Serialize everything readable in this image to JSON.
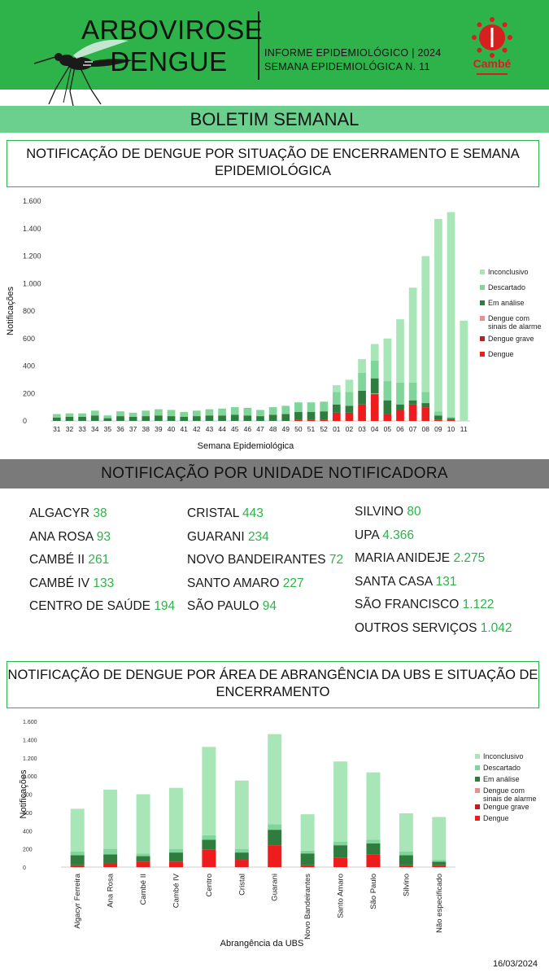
{
  "header": {
    "title_line1": "ARBOVIROSE",
    "title_line2": "DENGUE",
    "info_line1": "INFORME EPIDEMIOLÓGICO | 2024",
    "info_line2": "SEMANA EPIDEMIOLÓGICA  N. 11",
    "logo_text": "Cambé"
  },
  "banner": "BOLETIM SEMANAL",
  "units_section_title": "NOTIFICAÇÃO POR UNIDADE NOTIFICADORA",
  "units": {
    "col1": [
      {
        "name": "ALGACYR",
        "value": "38"
      },
      {
        "name": "ANA ROSA",
        "value": "93"
      },
      {
        "name": "CAMBÉ II",
        "value": "261"
      },
      {
        "name": "CAMBÉ IV",
        "value": "133"
      },
      {
        "name": "CENTRO DE SAÚDE",
        "value": "194"
      }
    ],
    "col2": [
      {
        "name": "CRISTAL",
        "value": "443"
      },
      {
        "name": "GUARANI",
        "value": "234"
      },
      {
        "name": "NOVO BANDEIRANTES",
        "value": "72"
      },
      {
        "name": "SANTO AMARO",
        "value": "227"
      },
      {
        "name": "SÃO PAULO",
        "value": "94"
      }
    ],
    "col3": [
      {
        "name": "SILVINO",
        "value": "80"
      },
      {
        "name": "UPA",
        "value": "4.366"
      },
      {
        "name": "MARIA ANIDEJE",
        "value": "2.275"
      },
      {
        "name": "SANTA CASA",
        "value": "131"
      },
      {
        "name": "SÃO FRANCISCO",
        "value": "1.122"
      },
      {
        "name": "OUTROS SERVIÇOS",
        "value": "1.042"
      }
    ]
  },
  "date": "16/03/2024",
  "colors": {
    "header_green": "#2db34a",
    "banner_green": "#6bd08e",
    "grey_band": "#7a7a7a",
    "inconclusivo": "#a8e6b8",
    "descartado": "#7fd59a",
    "em_analise": "#2e7d3e",
    "alarme": "#ee8f8f",
    "grave": "#b62222",
    "dengue": "#ee1c1c"
  },
  "chart_data": [
    {
      "type": "bar",
      "stacked": true,
      "title": "NOTIFICAÇÃO DE DENGUE POR SITUAÇÃO DE ENCERRAMENTO E SEMANA EPIDEMIOLÓGICA",
      "xlabel": "Semana Epidemiológica",
      "ylabel": "Notificações",
      "ylim": [
        0,
        1600
      ],
      "yticks": [
        0,
        200,
        400,
        600,
        800,
        1000,
        1200,
        1400,
        1600
      ],
      "ytick_labels": [
        "0",
        "200",
        "400",
        "600",
        "800",
        "1.000",
        "1.200",
        "1.400",
        "1.600"
      ],
      "legend_position": "right",
      "categories": [
        "31",
        "32",
        "33",
        "34",
        "35",
        "36",
        "37",
        "38",
        "39",
        "40",
        "41",
        "42",
        "43",
        "44",
        "45",
        "46",
        "47",
        "48",
        "49",
        "50",
        "51",
        "52",
        "01",
        "02",
        "03",
        "04",
        "05",
        "06",
        "07",
        "08",
        "09",
        "10",
        "11"
      ],
      "series": [
        {
          "name": "Dengue",
          "color": "#ee1c1c",
          "values": [
            0,
            0,
            0,
            0,
            0,
            0,
            0,
            0,
            0,
            0,
            0,
            0,
            0,
            0,
            0,
            0,
            0,
            0,
            0,
            10,
            10,
            10,
            60,
            60,
            120,
            190,
            50,
            80,
            120,
            100,
            10,
            10,
            0
          ]
        },
        {
          "name": "Dengue grave",
          "color": "#b62222",
          "values": [
            0,
            0,
            0,
            0,
            0,
            0,
            0,
            0,
            0,
            0,
            0,
            0,
            0,
            0,
            0,
            0,
            0,
            0,
            0,
            0,
            0,
            0,
            0,
            0,
            0,
            5,
            0,
            0,
            0,
            0,
            0,
            0,
            0
          ]
        },
        {
          "name": "Dengue com sinais de alarme",
          "color": "#ee8f8f",
          "values": [
            0,
            0,
            0,
            0,
            0,
            0,
            0,
            0,
            0,
            0,
            0,
            0,
            0,
            0,
            0,
            0,
            0,
            0,
            0,
            0,
            0,
            0,
            0,
            0,
            0,
            5,
            0,
            0,
            0,
            0,
            0,
            0,
            0
          ]
        },
        {
          "name": "Em análise",
          "color": "#2e7d3e",
          "values": [
            25,
            30,
            30,
            40,
            20,
            35,
            30,
            35,
            40,
            35,
            30,
            35,
            40,
            40,
            45,
            40,
            35,
            45,
            50,
            55,
            55,
            60,
            60,
            50,
            100,
            110,
            100,
            40,
            30,
            30,
            30,
            10,
            0
          ]
        },
        {
          "name": "Descartado",
          "color": "#7fd59a",
          "values": [
            25,
            25,
            25,
            35,
            20,
            35,
            30,
            40,
            45,
            45,
            35,
            40,
            45,
            50,
            55,
            55,
            45,
            55,
            60,
            70,
            70,
            70,
            90,
            100,
            130,
            130,
            140,
            160,
            130,
            80,
            30,
            10,
            0
          ]
        },
        {
          "name": "Inconclusivo",
          "color": "#a8e6b8",
          "values": [
            0,
            0,
            0,
            0,
            0,
            0,
            0,
            0,
            0,
            0,
            0,
            0,
            0,
            0,
            0,
            0,
            0,
            0,
            0,
            0,
            0,
            0,
            50,
            90,
            100,
            120,
            310,
            460,
            690,
            990,
            1400,
            1490,
            730
          ]
        }
      ]
    },
    {
      "type": "bar",
      "stacked": true,
      "title": "NOTIFICAÇÃO DE DENGUE POR ÁREA DE ABRANGÊNCIA DA UBS E SITUAÇÃO DE ENCERRAMENTO",
      "xlabel": "Abrangência da UBS",
      "ylabel": "Notificações",
      "ylim": [
        0,
        1600
      ],
      "yticks": [
        0,
        200,
        400,
        600,
        800,
        1000,
        1200,
        1400,
        1600
      ],
      "ytick_labels": [
        "0",
        "200",
        "400",
        "600",
        "800",
        "1.000",
        "1.200",
        "1.400",
        "1.600"
      ],
      "legend_position": "right",
      "categories": [
        "Algacyr Ferreira",
        "Ana Rosa",
        "Cambé II",
        "Cambé IV",
        "Centro",
        "Cristal",
        "Guarani",
        "Novo Bandeirantes",
        "Santo Amaro",
        "São Paulo",
        "Silvino",
        "Não especificado"
      ],
      "series": [
        {
          "name": "Dengue",
          "color": "#ee1c1c",
          "values": [
            20,
            40,
            60,
            60,
            190,
            80,
            240,
            20,
            100,
            140,
            20,
            20
          ]
        },
        {
          "name": "Dengue grave",
          "color": "#b62222",
          "values": [
            0,
            0,
            0,
            0,
            0,
            0,
            0,
            0,
            0,
            0,
            0,
            0
          ]
        },
        {
          "name": "Dengue com sinais de alarme",
          "color": "#ee8f8f",
          "values": [
            0,
            0,
            0,
            0,
            0,
            0,
            0,
            0,
            0,
            0,
            0,
            0
          ]
        },
        {
          "name": "Em análise",
          "color": "#2e7d3e",
          "values": [
            110,
            100,
            60,
            100,
            110,
            80,
            170,
            130,
            140,
            120,
            110,
            40
          ]
        },
        {
          "name": "Descartado",
          "color": "#7fd59a",
          "values": [
            40,
            60,
            30,
            40,
            50,
            40,
            60,
            30,
            40,
            40,
            40,
            20
          ]
        },
        {
          "name": "Inconclusivo",
          "color": "#a8e6b8",
          "values": [
            470,
            650,
            650,
            670,
            970,
            750,
            990,
            400,
            880,
            740,
            420,
            470
          ]
        }
      ]
    }
  ]
}
